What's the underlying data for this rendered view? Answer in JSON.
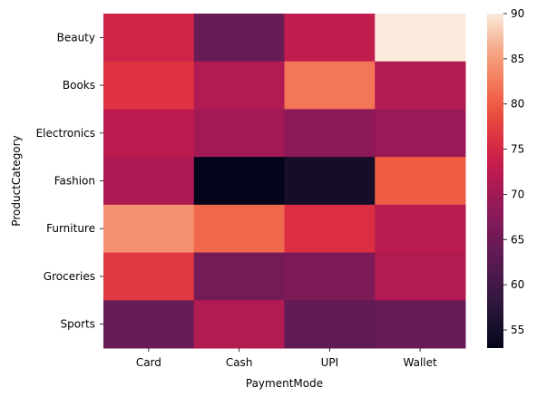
{
  "chart_data": {
    "type": "heatmap",
    "title": "",
    "xlabel": "PaymentMode",
    "ylabel": "ProductCategory",
    "x_categories": [
      "Card",
      "Cash",
      "UPI",
      "Wallet"
    ],
    "y_categories": [
      "Beauty",
      "Books",
      "Electronics",
      "Fashion",
      "Furniture",
      "Groceries",
      "Sports"
    ],
    "values": [
      [
        74.5,
        64.5,
        73.0,
        90.0
      ],
      [
        76.5,
        71.5,
        82.0,
        71.5
      ],
      [
        72.5,
        70.0,
        68.0,
        69.5
      ],
      [
        71.0,
        53.0,
        55.0,
        80.0
      ],
      [
        84.0,
        81.0,
        76.0,
        72.0
      ],
      [
        77.0,
        65.5,
        66.5,
        71.5
      ],
      [
        64.5,
        71.5,
        63.5,
        64.5
      ]
    ],
    "colorbar": {
      "min": 53,
      "max": 90,
      "ticks": [
        55,
        60,
        65,
        70,
        75,
        80,
        85,
        90
      ],
      "colormap": "rocket"
    }
  }
}
